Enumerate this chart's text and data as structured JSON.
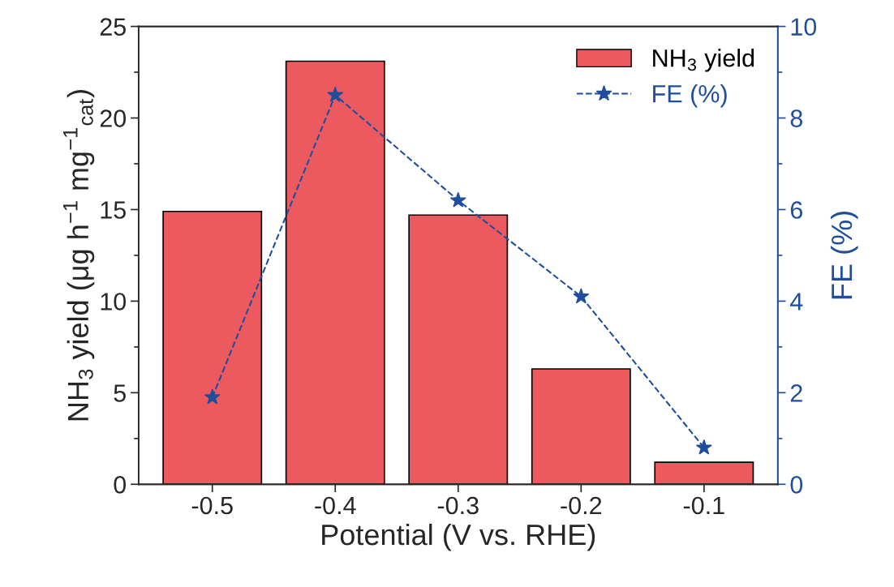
{
  "chart_data": {
    "type": "bar",
    "xlabel": "Potential (V vs. RHE)",
    "ylabel": "NH$_{3}$ yield (μg h$^{−1}$ mg$^{−1}$$_{cat}$)",
    "y2label": "FE (%)",
    "categories": [
      "-0.5",
      "-0.4",
      "-0.3",
      "-0.2",
      "-0.1"
    ],
    "series": [
      {
        "name": "NH$_{3}$ yield",
        "color": "#ec5a5f",
        "values": [
          14.9,
          23.1,
          14.7,
          6.3,
          1.2
        ]
      },
      {
        "name": "FE (%)",
        "type": "line",
        "axis": "y2",
        "color": "#1f4e9c",
        "marker": "star",
        "line_style": "dashed",
        "values": [
          1.9,
          8.5,
          6.2,
          4.1,
          0.8
        ]
      }
    ],
    "ylim": [
      0,
      25
    ],
    "yticks": [
      0,
      5,
      10,
      15,
      20,
      25
    ],
    "y2lim": [
      0,
      10
    ],
    "y2ticks": [
      0,
      2,
      4,
      6,
      8,
      10
    ],
    "legend": "top right",
    "grid": false
  }
}
